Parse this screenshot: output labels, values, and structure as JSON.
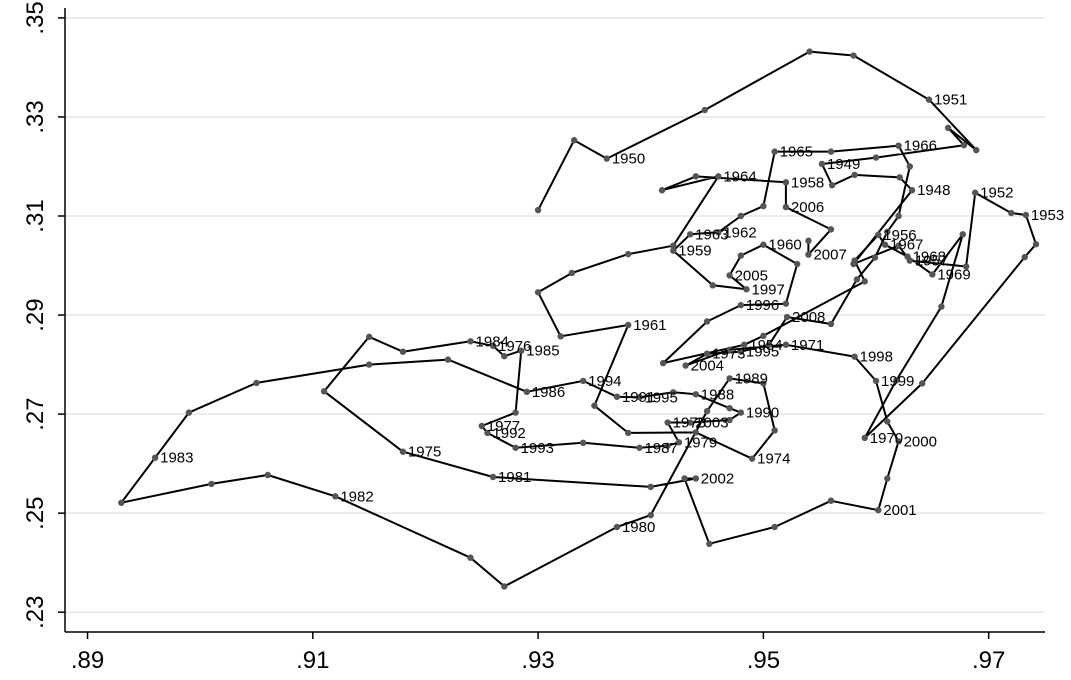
{
  "chart_data": {
    "type": "line",
    "title": "",
    "xlabel": "",
    "ylabel": "",
    "xlim": [
      0.888,
      0.975
    ],
    "ylim": [
      0.226,
      0.352
    ],
    "x_ticks": [
      {
        "value": 0.89,
        "label": ".89"
      },
      {
        "value": 0.91,
        "label": ".91"
      },
      {
        "value": 0.93,
        "label": ".93"
      },
      {
        "value": 0.95,
        "label": ".95"
      },
      {
        "value": 0.97,
        "label": ".97"
      }
    ],
    "y_ticks": [
      {
        "value": 0.23,
        "label": ".23"
      },
      {
        "value": 0.25,
        "label": ".25"
      },
      {
        "value": 0.27,
        "label": ".27"
      },
      {
        "value": 0.29,
        "label": ".29"
      },
      {
        "value": 0.31,
        "label": ".31"
      },
      {
        "value": 0.33,
        "label": ".33"
      },
      {
        "value": 0.35,
        "label": ".35"
      }
    ],
    "grid": true,
    "legend": "none",
    "line_color": "#000000",
    "marker_color": "#555555",
    "points": [
      {
        "x": 0.93,
        "y": 0.3112,
        "label": ""
      },
      {
        "x": 0.9332,
        "y": 0.3253,
        "label": ""
      },
      {
        "x": 0.9361,
        "y": 0.3216,
        "label": "1950"
      },
      {
        "x": 0.9448,
        "y": 0.3314,
        "label": ""
      },
      {
        "x": 0.9541,
        "y": 0.3432,
        "label": ""
      },
      {
        "x": 0.958,
        "y": 0.3424,
        "label": ""
      },
      {
        "x": 0.9647,
        "y": 0.3335,
        "label": "1951"
      },
      {
        "x": 0.9689,
        "y": 0.3233,
        "label": ""
      },
      {
        "x": 0.9664,
        "y": 0.3278,
        "label": ""
      },
      {
        "x": 0.9678,
        "y": 0.3243,
        "label": ""
      },
      {
        "x": 0.96,
        "y": 0.3218,
        "label": ""
      },
      {
        "x": 0.9552,
        "y": 0.3205,
        "label": "1949"
      },
      {
        "x": 0.9561,
        "y": 0.3162,
        "label": ""
      },
      {
        "x": 0.9581,
        "y": 0.3183,
        "label": ""
      },
      {
        "x": 0.9621,
        "y": 0.3178,
        "label": ""
      },
      {
        "x": 0.9632,
        "y": 0.3152,
        "label": "1948"
      },
      {
        "x": 0.958,
        "y": 0.3003,
        "label": ""
      },
      {
        "x": 0.962,
        "y": 0.304,
        "label": ""
      },
      {
        "x": 0.963,
        "y": 0.301,
        "label": "1957"
      },
      {
        "x": 0.968,
        "y": 0.2998,
        "label": ""
      },
      {
        "x": 0.9688,
        "y": 0.3147,
        "label": "1952"
      },
      {
        "x": 0.972,
        "y": 0.3106,
        "label": ""
      },
      {
        "x": 0.9733,
        "y": 0.3102,
        "label": "1953"
      },
      {
        "x": 0.9742,
        "y": 0.3043,
        "label": ""
      },
      {
        "x": 0.9732,
        "y": 0.3017,
        "label": ""
      },
      {
        "x": 0.9641,
        "y": 0.2762,
        "label": ""
      },
      {
        "x": 0.959,
        "y": 0.2652,
        "label": "1970"
      },
      {
        "x": 0.9618,
        "y": 0.2768,
        "label": ""
      },
      {
        "x": 0.9658,
        "y": 0.2917,
        "label": ""
      },
      {
        "x": 0.9677,
        "y": 0.3063,
        "label": ""
      },
      {
        "x": 0.965,
        "y": 0.2982,
        "label": "1969"
      },
      {
        "x": 0.9628,
        "y": 0.3018,
        "label": "1968"
      },
      {
        "x": 0.9608,
        "y": 0.3042,
        "label": "1967"
      },
      {
        "x": 0.9602,
        "y": 0.3062,
        "label": "1956"
      },
      {
        "x": 0.9581,
        "y": 0.301,
        "label": ""
      },
      {
        "x": 0.959,
        "y": 0.2968,
        "label": ""
      },
      {
        "x": 0.95,
        "y": 0.2858,
        "label": ""
      },
      {
        "x": 0.9483,
        "y": 0.284,
        "label": "1954"
      },
      {
        "x": 0.9411,
        "y": 0.2803,
        "label": ""
      },
      {
        "x": 0.945,
        "y": 0.2887,
        "label": ""
      },
      {
        "x": 0.948,
        "y": 0.292,
        "label": "1996"
      },
      {
        "x": 0.952,
        "y": 0.2923,
        "label": ""
      },
      {
        "x": 0.953,
        "y": 0.3003,
        "label": ""
      },
      {
        "x": 0.95,
        "y": 0.3042,
        "label": "1960"
      },
      {
        "x": 0.948,
        "y": 0.302,
        "label": ""
      },
      {
        "x": 0.947,
        "y": 0.298,
        "label": "2005"
      },
      {
        "x": 0.9485,
        "y": 0.2952,
        "label": "1997"
      },
      {
        "x": 0.9455,
        "y": 0.296,
        "label": ""
      },
      {
        "x": 0.942,
        "y": 0.303,
        "label": "1959"
      },
      {
        "x": 0.9435,
        "y": 0.3063,
        "label": "1963"
      },
      {
        "x": 0.946,
        "y": 0.3067,
        "label": "1962"
      },
      {
        "x": 0.948,
        "y": 0.31,
        "label": ""
      },
      {
        "x": 0.95,
        "y": 0.312,
        "label": ""
      },
      {
        "x": 0.951,
        "y": 0.323,
        "label": "1965"
      },
      {
        "x": 0.956,
        "y": 0.323,
        "label": ""
      },
      {
        "x": 0.962,
        "y": 0.3242,
        "label": "1966"
      },
      {
        "x": 0.963,
        "y": 0.32,
        "label": ""
      },
      {
        "x": 0.962,
        "y": 0.31,
        "label": ""
      },
      {
        "x": 0.961,
        "y": 0.3068,
        "label": ""
      },
      {
        "x": 0.9599,
        "y": 0.3016,
        "label": ""
      },
      {
        "x": 0.9583,
        "y": 0.2972,
        "label": ""
      },
      {
        "x": 0.956,
        "y": 0.2882,
        "label": ""
      },
      {
        "x": 0.9521,
        "y": 0.2896,
        "label": "2008"
      },
      {
        "x": 0.9505,
        "y": 0.284,
        "label": ""
      },
      {
        "x": 0.948,
        "y": 0.2826,
        "label": "1995"
      },
      {
        "x": 0.945,
        "y": 0.2822,
        "label": "1973"
      },
      {
        "x": 0.9431,
        "y": 0.2798,
        "label": "2004"
      },
      {
        "x": 0.947,
        "y": 0.283,
        "label": ""
      },
      {
        "x": 0.952,
        "y": 0.284,
        "label": "1971"
      },
      {
        "x": 0.9581,
        "y": 0.2816,
        "label": "1998"
      },
      {
        "x": 0.96,
        "y": 0.2767,
        "label": "1999"
      },
      {
        "x": 0.961,
        "y": 0.2685,
        "label": ""
      },
      {
        "x": 0.962,
        "y": 0.2645,
        "label": "2000"
      },
      {
        "x": 0.961,
        "y": 0.257,
        "label": ""
      },
      {
        "x": 0.9602,
        "y": 0.2506,
        "label": "2001"
      },
      {
        "x": 0.956,
        "y": 0.2525,
        "label": ""
      },
      {
        "x": 0.951,
        "y": 0.2472,
        "label": ""
      },
      {
        "x": 0.9452,
        "y": 0.2438,
        "label": ""
      },
      {
        "x": 0.943,
        "y": 0.257,
        "label": ""
      },
      {
        "x": 0.944,
        "y": 0.257,
        "label": "2002"
      },
      {
        "x": 0.94,
        "y": 0.2553,
        "label": ""
      },
      {
        "x": 0.926,
        "y": 0.2573,
        "label": "1981"
      },
      {
        "x": 0.918,
        "y": 0.2624,
        "label": "1975"
      },
      {
        "x": 0.911,
        "y": 0.2746,
        "label": ""
      },
      {
        "x": 0.915,
        "y": 0.2856,
        "label": ""
      },
      {
        "x": 0.918,
        "y": 0.2826,
        "label": ""
      },
      {
        "x": 0.924,
        "y": 0.2847,
        "label": "1984"
      },
      {
        "x": 0.926,
        "y": 0.2838,
        "label": "1976"
      },
      {
        "x": 0.927,
        "y": 0.2817,
        "label": ""
      },
      {
        "x": 0.9285,
        "y": 0.2828,
        "label": "1985"
      },
      {
        "x": 0.928,
        "y": 0.2703,
        "label": ""
      },
      {
        "x": 0.925,
        "y": 0.2676,
        "label": "1977"
      },
      {
        "x": 0.9255,
        "y": 0.2662,
        "label": "1992"
      },
      {
        "x": 0.928,
        "y": 0.2632,
        "label": "1993"
      },
      {
        "x": 0.934,
        "y": 0.2642,
        "label": ""
      },
      {
        "x": 0.939,
        "y": 0.2632,
        "label": "1987"
      },
      {
        "x": 0.9415,
        "y": 0.2636,
        "label": ""
      },
      {
        "x": 0.9425,
        "y": 0.2643,
        "label": "1979"
      },
      {
        "x": 0.9415,
        "y": 0.2683,
        "label": "1978"
      },
      {
        "x": 0.9435,
        "y": 0.2683,
        "label": "2003"
      },
      {
        "x": 0.947,
        "y": 0.2688,
        "label": ""
      },
      {
        "x": 0.948,
        "y": 0.2703,
        "label": "1990"
      },
      {
        "x": 0.947,
        "y": 0.2712,
        "label": ""
      },
      {
        "x": 0.944,
        "y": 0.274,
        "label": "1988"
      },
      {
        "x": 0.942,
        "y": 0.2744,
        "label": ""
      },
      {
        "x": 0.939,
        "y": 0.2734,
        "label": "1995b"
      },
      {
        "x": 0.937,
        "y": 0.2735,
        "label": "1991"
      },
      {
        "x": 0.934,
        "y": 0.2767,
        "label": "1994"
      },
      {
        "x": 0.929,
        "y": 0.2745,
        "label": "1986"
      },
      {
        "x": 0.922,
        "y": 0.281,
        "label": ""
      },
      {
        "x": 0.915,
        "y": 0.28,
        "label": ""
      },
      {
        "x": 0.905,
        "y": 0.2763,
        "label": ""
      },
      {
        "x": 0.899,
        "y": 0.2703,
        "label": ""
      },
      {
        "x": 0.896,
        "y": 0.2612,
        "label": "1983"
      },
      {
        "x": 0.893,
        "y": 0.2521,
        "label": ""
      },
      {
        "x": 0.901,
        "y": 0.2559,
        "label": ""
      },
      {
        "x": 0.906,
        "y": 0.2577,
        "label": ""
      },
      {
        "x": 0.912,
        "y": 0.2534,
        "label": "1982"
      },
      {
        "x": 0.924,
        "y": 0.241,
        "label": ""
      },
      {
        "x": 0.927,
        "y": 0.2352,
        "label": ""
      },
      {
        "x": 0.937,
        "y": 0.2472,
        "label": "1980"
      },
      {
        "x": 0.94,
        "y": 0.2496,
        "label": ""
      },
      {
        "x": 0.945,
        "y": 0.2706,
        "label": ""
      },
      {
        "x": 0.947,
        "y": 0.2772,
        "label": "1989"
      },
      {
        "x": 0.95,
        "y": 0.2762,
        "label": ""
      },
      {
        "x": 0.951,
        "y": 0.2667,
        "label": ""
      },
      {
        "x": 0.949,
        "y": 0.261,
        "label": "1974"
      },
      {
        "x": 0.944,
        "y": 0.2663,
        "label": ""
      },
      {
        "x": 0.938,
        "y": 0.2662,
        "label": ""
      },
      {
        "x": 0.935,
        "y": 0.2717,
        "label": ""
      },
      {
        "x": 0.938,
        "y": 0.288,
        "label": "1961"
      },
      {
        "x": 0.932,
        "y": 0.2857,
        "label": ""
      },
      {
        "x": 0.93,
        "y": 0.2946,
        "label": ""
      },
      {
        "x": 0.933,
        "y": 0.2985,
        "label": ""
      },
      {
        "x": 0.938,
        "y": 0.3023,
        "label": ""
      },
      {
        "x": 0.942,
        "y": 0.304,
        "label": ""
      },
      {
        "x": 0.946,
        "y": 0.318,
        "label": "1964"
      },
      {
        "x": 0.941,
        "y": 0.3152,
        "label": ""
      },
      {
        "x": 0.944,
        "y": 0.318,
        "label": ""
      },
      {
        "x": 0.952,
        "y": 0.3168,
        "label": "1958"
      },
      {
        "x": 0.952,
        "y": 0.3118,
        "label": "2006"
      },
      {
        "x": 0.956,
        "y": 0.3073,
        "label": ""
      },
      {
        "x": 0.954,
        "y": 0.3022,
        "label": "2007"
      },
      {
        "x": 0.954,
        "y": 0.305,
        "label": ""
      }
    ]
  }
}
